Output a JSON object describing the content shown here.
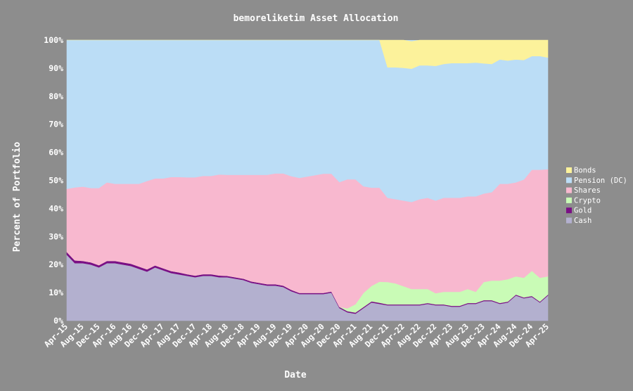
{
  "chart_data": {
    "type": "area",
    "stacked": true,
    "title": "bemoreliketim Asset Allocation",
    "xlabel": "Date",
    "ylabel": "Percent of Portfolio",
    "ylim": [
      0,
      100
    ],
    "yticks": [
      "0%",
      "10%",
      "20%",
      "30%",
      "40%",
      "50%",
      "60%",
      "70%",
      "80%",
      "90%",
      "100%"
    ],
    "xticks": [
      "Apr-15",
      "Aug-15",
      "Dec-15",
      "Apr-16",
      "Aug-16",
      "Dec-16",
      "Apr-17",
      "Aug-17",
      "Dec-17",
      "Apr-18",
      "Aug-18",
      "Dec-18",
      "Apr-19",
      "Aug-19",
      "Dec-19",
      "Apr-20",
      "Aug-20",
      "Dec-20",
      "Apr-21",
      "Aug-21",
      "Dec-21",
      "Apr-22",
      "Aug-22",
      "Dec-22",
      "Apr-23",
      "Aug-23",
      "Dec-23",
      "Apr-24",
      "Aug-24",
      "Dec-24",
      "Apr-25"
    ],
    "x": [
      "Apr-15",
      "Jun-15",
      "Aug-15",
      "Oct-15",
      "Dec-15",
      "Feb-16",
      "Apr-16",
      "Jun-16",
      "Aug-16",
      "Oct-16",
      "Dec-16",
      "Feb-17",
      "Apr-17",
      "Jun-17",
      "Aug-17",
      "Oct-17",
      "Dec-17",
      "Feb-18",
      "Apr-18",
      "Jun-18",
      "Aug-18",
      "Oct-18",
      "Dec-18",
      "Feb-19",
      "Apr-19",
      "Jun-19",
      "Aug-19",
      "Oct-19",
      "Dec-19",
      "Feb-20",
      "Apr-20",
      "Jun-20",
      "Aug-20",
      "Oct-20",
      "Dec-20",
      "Feb-21",
      "Apr-21",
      "Jun-21",
      "Aug-21",
      "Oct-21",
      "Dec-21",
      "Feb-22",
      "Apr-22",
      "Jun-22",
      "Aug-22",
      "Oct-22",
      "Dec-22",
      "Feb-23",
      "Apr-23",
      "Jun-23",
      "Aug-23",
      "Oct-23",
      "Dec-23",
      "Feb-24",
      "Apr-24",
      "Jun-24",
      "Aug-24",
      "Oct-24",
      "Dec-24",
      "Feb-25",
      "Apr-25"
    ],
    "legend_position": "right",
    "series": [
      {
        "name": "Cash",
        "color": "#b3b0cf",
        "values": [
          23.5,
          20.5,
          20.5,
          20,
          19,
          20.5,
          20.5,
          20,
          19.5,
          18.5,
          17.5,
          19,
          18,
          17,
          16.5,
          16,
          15.5,
          16,
          16,
          15.5,
          15.5,
          15,
          14.5,
          13.5,
          13,
          12.5,
          12.5,
          12,
          10.5,
          9.5,
          9.5,
          9.5,
          9.5,
          10,
          4.5,
          3,
          2.5,
          4.5,
          6.5,
          6,
          5.5,
          5.5,
          5.5,
          5.5,
          5.5,
          6,
          5.5,
          5.5,
          5,
          5,
          6,
          6,
          7,
          7,
          6,
          6.5,
          9,
          8,
          8.5,
          6.5,
          9
        ]
      },
      {
        "name": "Gold",
        "color": "#7a0f85",
        "values": [
          1,
          1,
          0.8,
          0.8,
          0.8,
          0.8,
          0.8,
          0.8,
          0.8,
          0.8,
          0.8,
          0.7,
          0.7,
          0.7,
          0.7,
          0.6,
          0.6,
          0.6,
          0.6,
          0.6,
          0.5,
          0.5,
          0.5,
          0.5,
          0.5,
          0.5,
          0.5,
          0.5,
          0.5,
          0.4,
          0.4,
          0.4,
          0.4,
          0.4,
          0.4,
          0.4,
          0.4,
          0.4,
          0.4,
          0.4,
          0.3,
          0.3,
          0.3,
          0.3,
          0.3,
          0.3,
          0.3,
          0.3,
          0.3,
          0.3,
          0.3,
          0.3,
          0.3,
          0.3,
          0.3,
          0.3,
          0.3,
          0.3,
          0.3,
          0.3,
          0.3
        ]
      },
      {
        "name": "Crypto",
        "color": "#c9fbb6",
        "values": [
          0,
          0,
          0,
          0,
          0,
          0,
          0,
          0,
          0,
          0,
          0,
          0,
          0,
          0,
          0,
          0,
          0,
          0,
          0,
          0,
          0,
          0,
          0,
          0,
          0,
          0,
          0,
          0,
          0,
          0,
          0,
          0,
          0,
          0,
          0,
          1,
          3,
          5,
          5.5,
          7.5,
          8,
          7.5,
          6.5,
          5.5,
          5.5,
          5,
          4,
          4.5,
          5,
          5,
          5,
          4,
          6.5,
          7,
          8,
          8,
          6.5,
          7,
          9,
          8.5,
          6.5
        ]
      },
      {
        "name": "Shares",
        "color": "#f8b8cf",
        "values": [
          22.5,
          26,
          26.5,
          26.5,
          27.5,
          28,
          27.5,
          28,
          28.5,
          29.5,
          31.5,
          31,
          32,
          33.5,
          34,
          34.5,
          35,
          35,
          35,
          36,
          36,
          36.5,
          37,
          38,
          38.5,
          39,
          39.5,
          40,
          40.5,
          41,
          41.5,
          42,
          42.5,
          42,
          44.5,
          46,
          44.5,
          38,
          35,
          33.5,
          30,
          30,
          30.5,
          31,
          32,
          32.5,
          33,
          33.5,
          33.5,
          33.5,
          33,
          34,
          31.5,
          31.5,
          34.5,
          34,
          33.5,
          35,
          36,
          38.5,
          38.2
        ]
      },
      {
        "name": "Pension (DC)",
        "color": "#bbddf6",
        "values": [
          53,
          52.5,
          52.2,
          52.7,
          52.7,
          50.7,
          51.2,
          51.2,
          51.2,
          51.2,
          50.2,
          49.3,
          49.3,
          48.8,
          48.8,
          48.9,
          48.9,
          48.4,
          48.4,
          47.9,
          48,
          48,
          48,
          48,
          48,
          48,
          47.5,
          47.5,
          48.5,
          49.1,
          48.6,
          48.1,
          47.6,
          47.6,
          50.6,
          49.6,
          52.6,
          52.1,
          52.6,
          52.6,
          46.5,
          47,
          47.3,
          47.5,
          47.7,
          47.2,
          48,
          47.7,
          48,
          48,
          47.5,
          47.7,
          46.4,
          45.7,
          44.3,
          43.9,
          43.8,
          42.6,
          40.5,
          40.5,
          39.8
        ]
      },
      {
        "name": "Bonds",
        "color": "#fcf29b",
        "values": [
          0,
          0,
          0,
          0,
          0,
          0,
          0,
          0,
          0,
          0,
          0,
          0,
          0,
          0,
          0,
          0,
          0,
          0,
          0,
          0,
          0,
          0,
          0,
          0,
          0,
          0,
          0,
          0,
          0,
          0,
          0,
          0,
          0,
          0,
          0,
          0,
          0,
          0,
          0,
          0,
          9.7,
          9.7,
          9.9,
          9.7,
          9,
          9,
          9.2,
          8.5,
          8.2,
          8.2,
          8.2,
          8,
          8.3,
          8.5,
          6.9,
          7.3,
          6.9,
          7.1,
          5.7,
          5.7,
          6.2
        ]
      }
    ]
  }
}
